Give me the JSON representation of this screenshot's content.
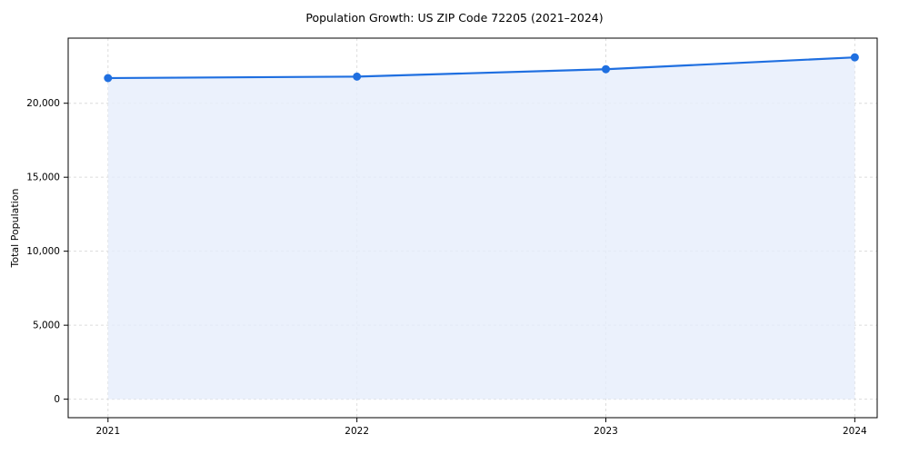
{
  "chart_data": {
    "type": "area",
    "title": "Population Growth: US ZIP Code 72205 (2021–2024)",
    "xlabel": "",
    "ylabel": "Total Population",
    "x": [
      2021,
      2022,
      2023,
      2024
    ],
    "series": [
      {
        "name": "Total Population",
        "values": [
          21700,
          21800,
          22300,
          23100
        ]
      }
    ],
    "xticks": [
      2021,
      2022,
      2023,
      2024
    ],
    "xtick_labels": [
      "2021",
      "2022",
      "2023",
      "2024"
    ],
    "yticks": [
      0,
      5000,
      10000,
      15000,
      20000
    ],
    "ytick_labels": [
      "0",
      "5,000",
      "10,000",
      "15,000",
      "20,000"
    ],
    "xlim": [
      2020.84,
      2024.09
    ],
    "ylim": [
      -1250,
      24400
    ],
    "grid": true,
    "grid_style": "dashed",
    "legend": false,
    "marker": "circle",
    "colors": {
      "line": "#1f6fe0",
      "fill": "#e6eefb",
      "grid": "#dcdcdc",
      "spine": "#000000",
      "text": "#000000",
      "background": "#ffffff"
    }
  }
}
